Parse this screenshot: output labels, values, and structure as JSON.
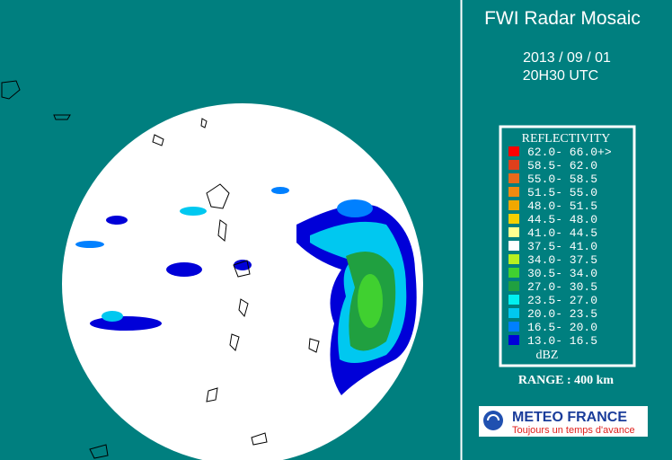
{
  "header": {
    "title": "FWI Radar Mosaic",
    "date": "2013 / 09 / 01",
    "time": "20H30 UTC"
  },
  "legend": {
    "title": "REFLECTIVITY",
    "unit": "dBZ",
    "entries": [
      {
        "label": "62.0- 66.0+>",
        "color": "#ff0000"
      },
      {
        "label": "58.5- 62.0",
        "color": "#e0401c"
      },
      {
        "label": "55.0- 58.5",
        "color": "#e86a1a"
      },
      {
        "label": "51.5- 55.0",
        "color": "#f08a10"
      },
      {
        "label": "48.0- 51.5",
        "color": "#f0a800"
      },
      {
        "label": "44.5- 48.0",
        "color": "#f5d000"
      },
      {
        "label": "41.0- 44.5",
        "color": "#ffff90"
      },
      {
        "label": "37.5- 41.0",
        "color": "#ffffff"
      },
      {
        "label": "34.0- 37.5",
        "color": "#b8f020"
      },
      {
        "label": "30.5- 34.0",
        "color": "#40d030"
      },
      {
        "label": "27.0- 30.5",
        "color": "#20a040"
      },
      {
        "label": "23.5- 27.0",
        "color": "#00f0f0"
      },
      {
        "label": "20.0- 23.5",
        "color": "#00c8f0"
      },
      {
        "label": "16.5- 20.0",
        "color": "#0080ff"
      },
      {
        "label": "13.0- 16.5",
        "color": "#0000d8"
      }
    ]
  },
  "range": "RANGE : 400 km",
  "logo": {
    "name": "METEO FRANCE",
    "slogan": "Toujours un temps d'avance"
  }
}
